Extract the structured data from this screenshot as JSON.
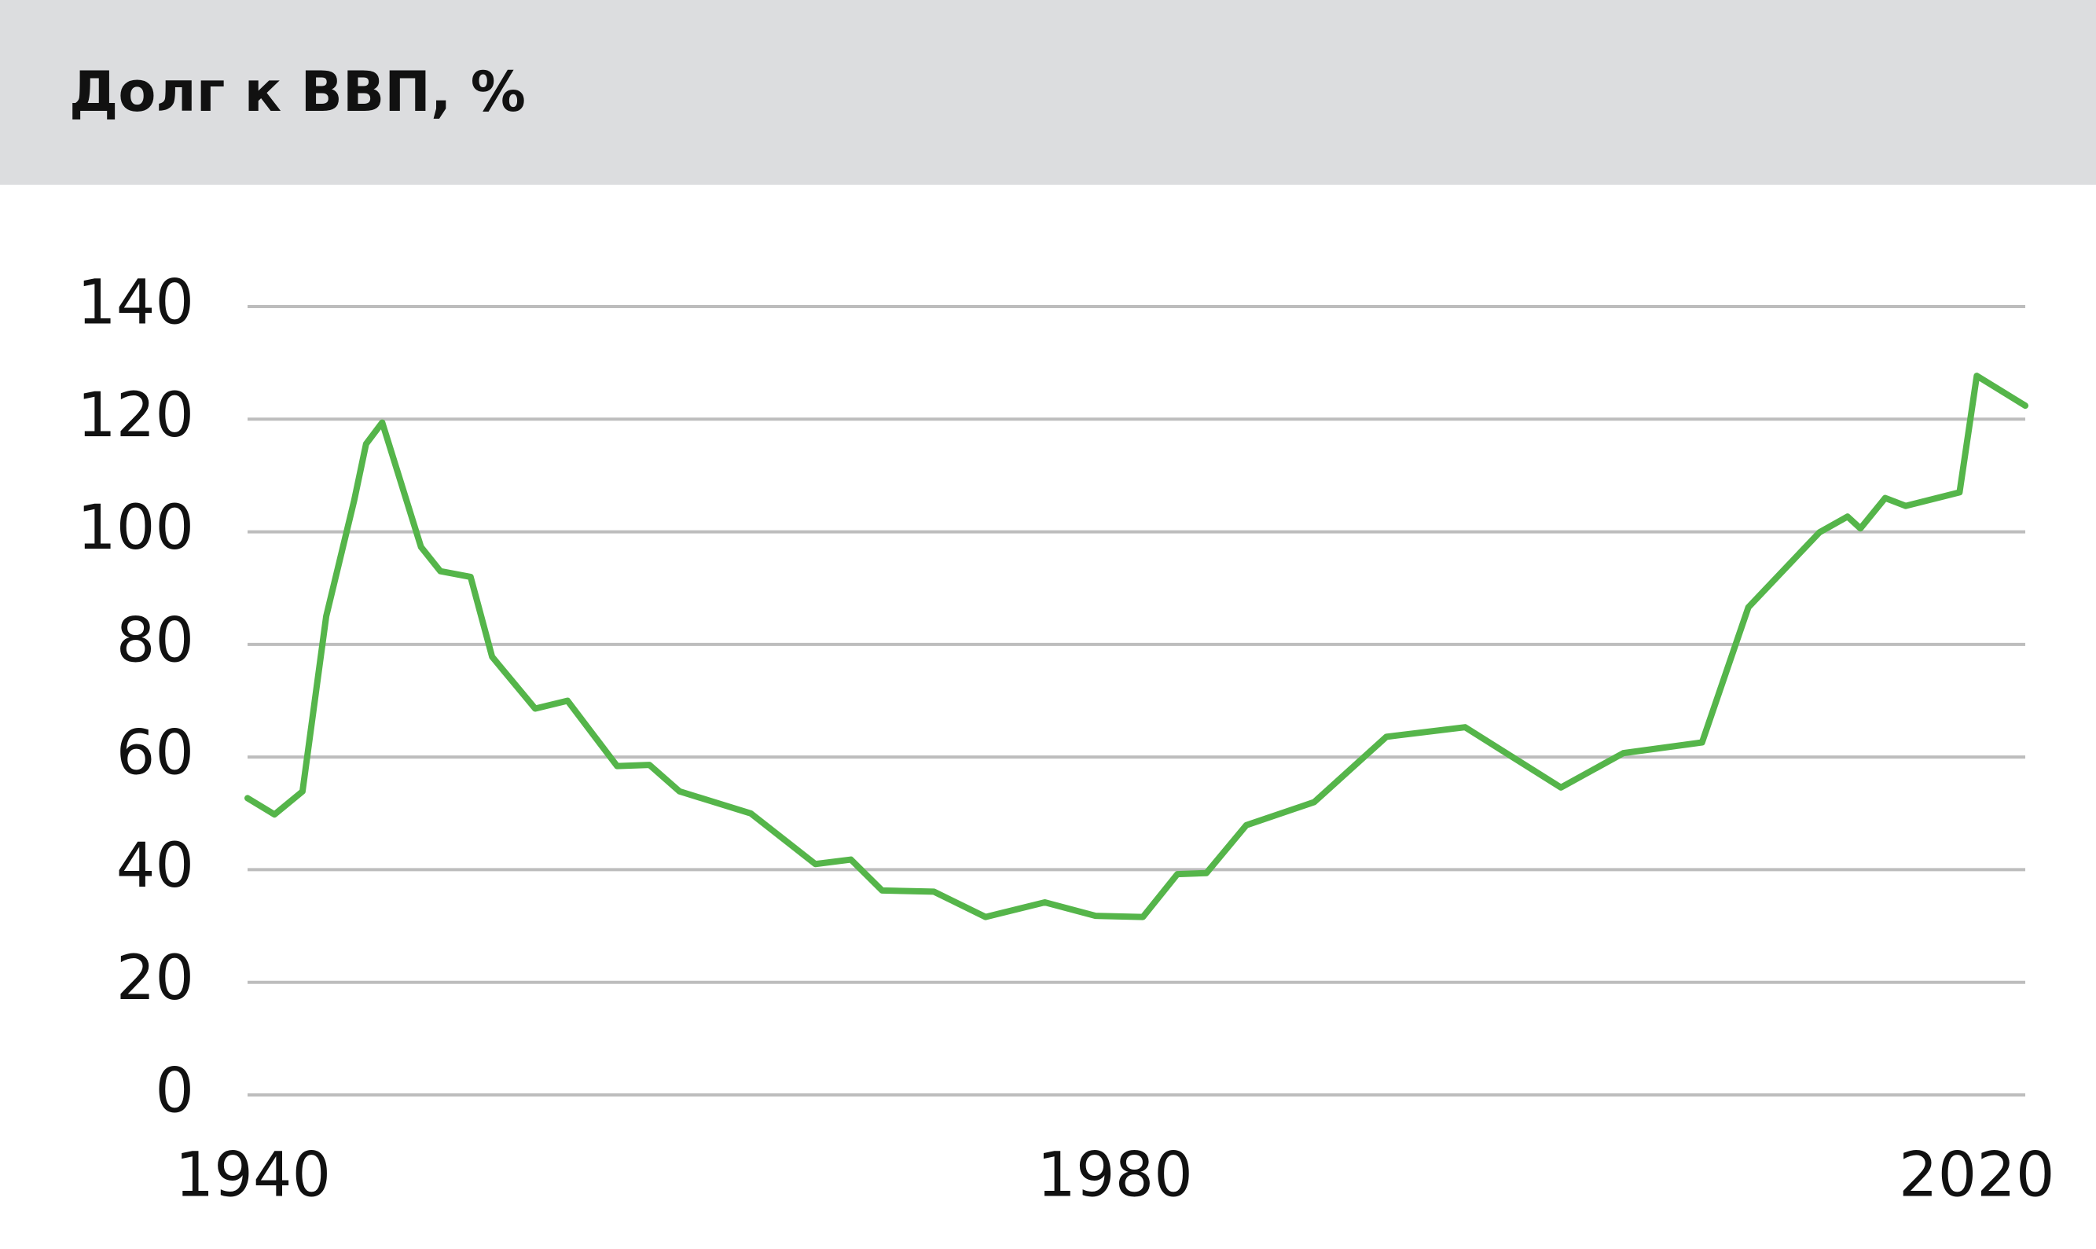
{
  "chart_data": {
    "type": "line",
    "title": "Долг к ВВП, %",
    "x": [
      1939.75,
      1941,
      1942.3,
      1943.4,
      1944.7,
      1945.25,
      1946,
      1947.8,
      1948.7,
      1950.1,
      1951.1,
      1953.1,
      1954.6,
      1956.9,
      1958.4,
      1959.8,
      1963.1,
      1966.1,
      1967.75,
      1969.2,
      1971.6,
      1974,
      1976.75,
      1979.1,
      1981.3,
      1982.9,
      1984.25,
      1986.1,
      1989.25,
      1992.6,
      1996.25,
      2000.7,
      2003.6,
      2007.25,
      2009.4,
      2012.7,
      2014,
      2014.6,
      2015.75,
      2016.7,
      2019.2,
      2020,
      2022.25
    ],
    "series": [
      {
        "color": "#55b54a",
        "values": [
          52.7,
          49.8,
          53.9,
          85,
          105.6,
          115.6,
          119.4,
          97.3,
          93,
          92,
          77.8,
          68.6,
          70,
          58.4,
          58.6,
          53.9,
          50,
          41,
          41.8,
          36.3,
          36.1,
          31.6,
          34.2,
          31.8,
          31.6,
          39.2,
          39.4,
          47.9,
          52,
          63.6,
          65.3,
          54.6,
          60.7,
          62.6,
          86.6,
          99.9,
          102.7,
          100.6,
          106,
          104.6,
          107,
          127.7,
          122.4
        ]
      }
    ],
    "xlim": [
      1939.75,
      2022.25
    ],
    "xticks": [
      1940,
      1980,
      2020
    ],
    "ylim": [
      0,
      140
    ],
    "yticks": [
      0,
      20,
      40,
      60,
      80,
      100,
      120,
      140
    ],
    "grid": true
  }
}
